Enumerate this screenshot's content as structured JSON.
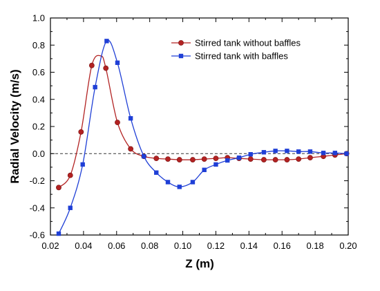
{
  "chart_data": {
    "type": "line",
    "title": "",
    "xlabel": "Z (m)",
    "ylabel": "Radial Velocity (m/s)",
    "xlim": [
      0.02,
      0.2
    ],
    "ylim": [
      -0.6,
      1.0
    ],
    "x_ticks": [
      "0.02",
      "0.04",
      "0.06",
      "0.08",
      "0.10",
      "0.12",
      "0.14",
      "0.16",
      "0.18",
      "0.20"
    ],
    "y_ticks": [
      "-0.6",
      "-0.4",
      "-0.2",
      "0.0",
      "0.2",
      "0.4",
      "0.6",
      "0.8",
      "1.0"
    ],
    "reference_line_y": 0.0,
    "legend_position": "top-right",
    "series": [
      {
        "name": "Stirred tank without baffles",
        "color": "#b22222",
        "marker": "circle",
        "points": [
          [
            0.025,
            -0.25
          ],
          [
            0.032,
            -0.16
          ],
          [
            0.0385,
            0.16
          ],
          [
            0.045,
            0.65
          ],
          [
            0.0535,
            0.63
          ],
          [
            0.0605,
            0.23
          ],
          [
            0.0685,
            0.035
          ],
          [
            0.0765,
            -0.02
          ],
          [
            0.084,
            -0.035
          ],
          [
            0.091,
            -0.04
          ],
          [
            0.098,
            -0.045
          ],
          [
            0.106,
            -0.045
          ],
          [
            0.113,
            -0.04
          ],
          [
            0.12,
            -0.035
          ],
          [
            0.127,
            -0.03
          ],
          [
            0.134,
            -0.035
          ],
          [
            0.141,
            -0.04
          ],
          [
            0.149,
            -0.045
          ],
          [
            0.156,
            -0.045
          ],
          [
            0.163,
            -0.045
          ],
          [
            0.17,
            -0.04
          ],
          [
            0.177,
            -0.03
          ],
          [
            0.185,
            -0.02
          ],
          [
            0.192,
            -0.01
          ],
          [
            0.199,
            0.0
          ]
        ],
        "curve": [
          [
            0.025,
            -0.25
          ],
          [
            0.032,
            -0.16
          ],
          [
            0.0385,
            0.16
          ],
          [
            0.045,
            0.65
          ],
          [
            0.0505,
            0.72
          ],
          [
            0.0535,
            0.63
          ],
          [
            0.0605,
            0.23
          ],
          [
            0.0685,
            0.035
          ],
          [
            0.0765,
            -0.02
          ],
          [
            0.084,
            -0.035
          ],
          [
            0.091,
            -0.04
          ],
          [
            0.098,
            -0.045
          ],
          [
            0.106,
            -0.045
          ],
          [
            0.113,
            -0.04
          ],
          [
            0.12,
            -0.035
          ],
          [
            0.127,
            -0.03
          ],
          [
            0.134,
            -0.035
          ],
          [
            0.141,
            -0.04
          ],
          [
            0.149,
            -0.045
          ],
          [
            0.156,
            -0.045
          ],
          [
            0.163,
            -0.045
          ],
          [
            0.17,
            -0.04
          ],
          [
            0.177,
            -0.03
          ],
          [
            0.185,
            -0.02
          ],
          [
            0.192,
            -0.01
          ],
          [
            0.199,
            0.0
          ]
        ]
      },
      {
        "name": "Stirred tank with baffles",
        "color": "#1f3fd6",
        "marker": "square",
        "points": [
          [
            0.025,
            -0.59
          ],
          [
            0.032,
            -0.4
          ],
          [
            0.0395,
            -0.08
          ],
          [
            0.047,
            0.49
          ],
          [
            0.054,
            0.83
          ],
          [
            0.0605,
            0.67
          ],
          [
            0.0685,
            0.26
          ],
          [
            0.0765,
            -0.02
          ],
          [
            0.084,
            -0.14
          ],
          [
            0.091,
            -0.21
          ],
          [
            0.098,
            -0.245
          ],
          [
            0.106,
            -0.21
          ],
          [
            0.113,
            -0.12
          ],
          [
            0.12,
            -0.08
          ],
          [
            0.127,
            -0.05
          ],
          [
            0.134,
            -0.03
          ],
          [
            0.141,
            -0.005
          ],
          [
            0.149,
            0.01
          ],
          [
            0.156,
            0.02
          ],
          [
            0.163,
            0.02
          ],
          [
            0.17,
            0.015
          ],
          [
            0.177,
            0.015
          ],
          [
            0.185,
            0.005
          ],
          [
            0.192,
            0.005
          ],
          [
            0.199,
            0.0
          ]
        ]
      }
    ]
  }
}
